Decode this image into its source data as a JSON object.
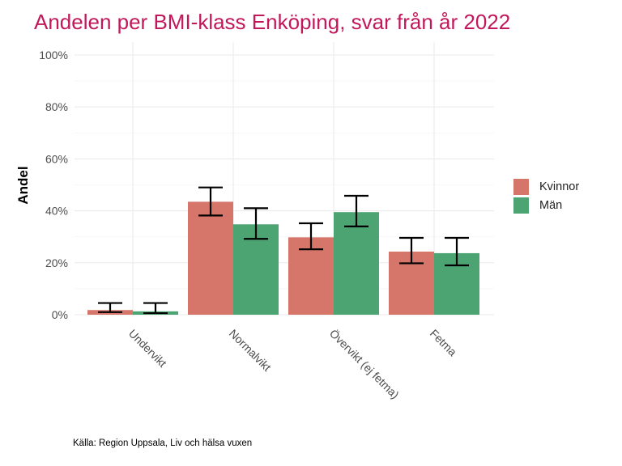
{
  "title": "Andelen per BMI-klass Enköping, svar från år 2022",
  "caption": "Källa: Region Uppsala, Liv och hälsa vuxen",
  "colors": {
    "title": "#c2185b",
    "kvinnor": "#d6756a",
    "man": "#4ba472"
  },
  "chart_data": {
    "type": "bar",
    "title": "Andelen per BMI-klass Enköping, svar från år 2022",
    "xlabel": "",
    "ylabel": "Andel",
    "categories": [
      "Undervikt",
      "Normalvikt",
      "Övervikt (ej fetma)",
      "Fetma"
    ],
    "ylim": [
      0,
      1
    ],
    "yticks": [
      0,
      0.2,
      0.4,
      0.6,
      0.8,
      1.0
    ],
    "ytick_labels": [
      "0%",
      "20%",
      "40%",
      "60%",
      "80%",
      "100%"
    ],
    "grid": true,
    "legend_position": "right",
    "series": [
      {
        "name": "Kvinnor",
        "color": "#d6756a",
        "values": [
          0.018,
          0.435,
          0.298,
          0.243
        ],
        "err_low": [
          0.01,
          0.382,
          0.252,
          0.198
        ],
        "err_high": [
          0.045,
          0.49,
          0.352,
          0.296
        ]
      },
      {
        "name": "Män",
        "color": "#4ba472",
        "values": [
          0.013,
          0.348,
          0.395,
          0.237
        ],
        "err_low": [
          0.006,
          0.292,
          0.34,
          0.19
        ],
        "err_high": [
          0.045,
          0.41,
          0.458,
          0.296
        ]
      }
    ]
  }
}
